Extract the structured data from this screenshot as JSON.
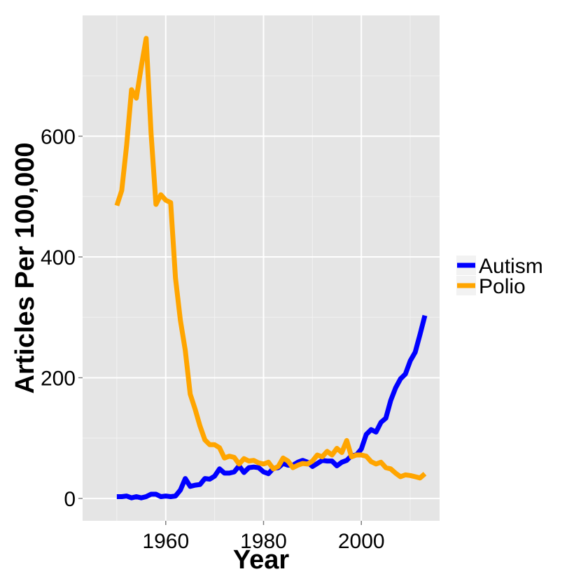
{
  "chart_data": {
    "type": "line",
    "title": "",
    "xlabel": "Year",
    "ylabel": "Articles Per 100,000",
    "xlim": [
      1943,
      2016
    ],
    "ylim": [
      -37,
      800
    ],
    "x_ticks": [
      1960,
      1980,
      2000
    ],
    "y_ticks": [
      0,
      200,
      400,
      600
    ],
    "x_tick_labels": [
      "1960",
      "1980",
      "2000"
    ],
    "y_tick_labels": [
      "0",
      "200",
      "400",
      "600"
    ],
    "grid": true,
    "legend_position": "right",
    "background_color": "#e5e5e5",
    "series": [
      {
        "name": "Autism",
        "color": "#0000ff",
        "x": [
          1950,
          1951,
          1952,
          1953,
          1954,
          1955,
          1956,
          1957,
          1958,
          1959,
          1960,
          1961,
          1962,
          1963,
          1964,
          1965,
          1966,
          1967,
          1968,
          1969,
          1970,
          1971,
          1972,
          1973,
          1974,
          1975,
          1976,
          1977,
          1978,
          1979,
          1980,
          1981,
          1982,
          1983,
          1984,
          1985,
          1986,
          1987,
          1988,
          1989,
          1990,
          1991,
          1992,
          1993,
          1994,
          1995,
          1996,
          1997,
          1998,
          1999,
          2000,
          2001,
          2002,
          2003,
          2004,
          2005,
          2006,
          2007,
          2008,
          2009,
          2010,
          2011,
          2012,
          2013
        ],
        "values": [
          3,
          3,
          4,
          1,
          3,
          1,
          3,
          7,
          7,
          3,
          4,
          3,
          4,
          14,
          33,
          20,
          22,
          23,
          33,
          32,
          37,
          49,
          42,
          42,
          44,
          54,
          43,
          51,
          52,
          51,
          44,
          41,
          50,
          51,
          58,
          55,
          55,
          60,
          63,
          60,
          53,
          58,
          63,
          62,
          62,
          54,
          60,
          63,
          71,
          72,
          82,
          106,
          114,
          110,
          126,
          133,
          162,
          183,
          198,
          206,
          228,
          242,
          272,
          303
        ]
      },
      {
        "name": "Polio",
        "color": "#ffa500",
        "x": [
          1950,
          1951,
          1952,
          1953,
          1954,
          1955,
          1956,
          1957,
          1958,
          1959,
          1960,
          1961,
          1962,
          1963,
          1964,
          1965,
          1966,
          1967,
          1968,
          1969,
          1970,
          1971,
          1972,
          1973,
          1974,
          1975,
          1976,
          1977,
          1978,
          1979,
          1980,
          1981,
          1982,
          1983,
          1984,
          1985,
          1986,
          1987,
          1988,
          1989,
          1990,
          1991,
          1992,
          1993,
          1994,
          1995,
          1996,
          1997,
          1998,
          1999,
          2000,
          2001,
          2002,
          2003,
          2004,
          2005,
          2006,
          2007,
          2008,
          2009,
          2010,
          2011,
          2012,
          2013
        ],
        "values": [
          485,
          510,
          585,
          677,
          663,
          715,
          762,
          605,
          487,
          503,
          494,
          490,
          365,
          295,
          245,
          173,
          148,
          120,
          97,
          89,
          89,
          84,
          67,
          70,
          68,
          57,
          66,
          62,
          63,
          59,
          57,
          60,
          49,
          53,
          67,
          62,
          51,
          55,
          58,
          57,
          62,
          72,
          69,
          78,
          72,
          83,
          76,
          96,
          69,
          72,
          72,
          70,
          61,
          57,
          60,
          51,
          49,
          42,
          36,
          39,
          38,
          36,
          34,
          41
        ]
      }
    ]
  }
}
